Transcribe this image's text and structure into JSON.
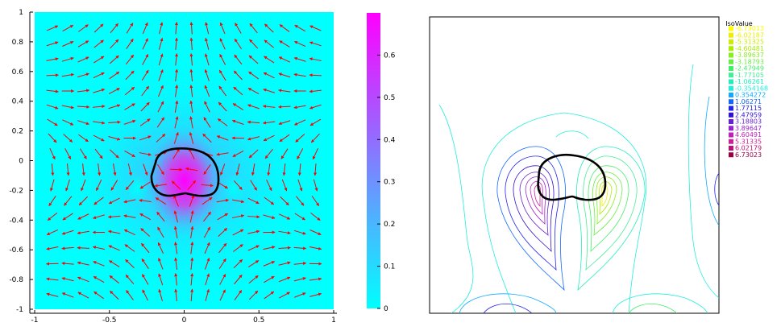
{
  "chart_data": [
    {
      "type": "heatmap",
      "subtype": "vector-field",
      "title": "",
      "xlabel": "",
      "ylabel": "",
      "xlim": [
        -1,
        1
      ],
      "ylim": [
        -1,
        1
      ],
      "x_ticks": [
        "-1",
        "-0.5",
        "0",
        "0.5",
        "1"
      ],
      "y_ticks": [
        "-1",
        "-0.8",
        "-0.6",
        "-0.4",
        "-0.2",
        "0",
        "0.2",
        "0.4",
        "0.6",
        "0.8",
        "1"
      ],
      "colorbar": {
        "range": [
          0,
          0.7
        ],
        "ticks": [
          "0",
          "0.1",
          "0.2",
          "0.3",
          "0.4",
          "0.5",
          "0.6"
        ],
        "colors": [
          "#00ffff",
          "#ff00ff"
        ]
      },
      "vector_color": "#ff0000",
      "outline_color": "#000000",
      "grid": false
    },
    {
      "type": "heatmap",
      "subtype": "contour",
      "title": "",
      "legend_placement": "top-right",
      "legend": {
        "title": "IsoValue",
        "entries": [
          {
            "label": "-6.73013",
            "color": "#ffff00"
          },
          {
            "label": "-6.02187",
            "color": "#eeee00"
          },
          {
            "label": "-5.31325",
            "color": "#ccee00"
          },
          {
            "label": "-4.60481",
            "color": "#aaee00"
          },
          {
            "label": "-3.89637",
            "color": "#88ee22"
          },
          {
            "label": "-3.18793",
            "color": "#66ee44"
          },
          {
            "label": "-2.47949",
            "color": "#44ee66"
          },
          {
            "label": "-1.77105",
            "color": "#44ee99"
          },
          {
            "label": "-1.06261",
            "color": "#22eebb"
          },
          {
            "label": "-0.354168",
            "color": "#22eedd"
          },
          {
            "label": "0.354272",
            "color": "#11aaff"
          },
          {
            "label": "1.06271",
            "color": "#1166ff"
          },
          {
            "label": "1.77115",
            "color": "#2222ee"
          },
          {
            "label": "2.47959",
            "color": "#3311cc"
          },
          {
            "label": "3.18803",
            "color": "#6622cc"
          },
          {
            "label": "3.89647",
            "color": "#9922cc"
          },
          {
            "label": "4.60491",
            "color": "#bb22bb"
          },
          {
            "label": "5.31335",
            "color": "#cc2299"
          },
          {
            "label": "6.02179",
            "color": "#bb1177"
          },
          {
            "label": "6.73023",
            "color": "#990044"
          }
        ]
      },
      "outline_color": "#000000",
      "grid": false
    }
  ]
}
